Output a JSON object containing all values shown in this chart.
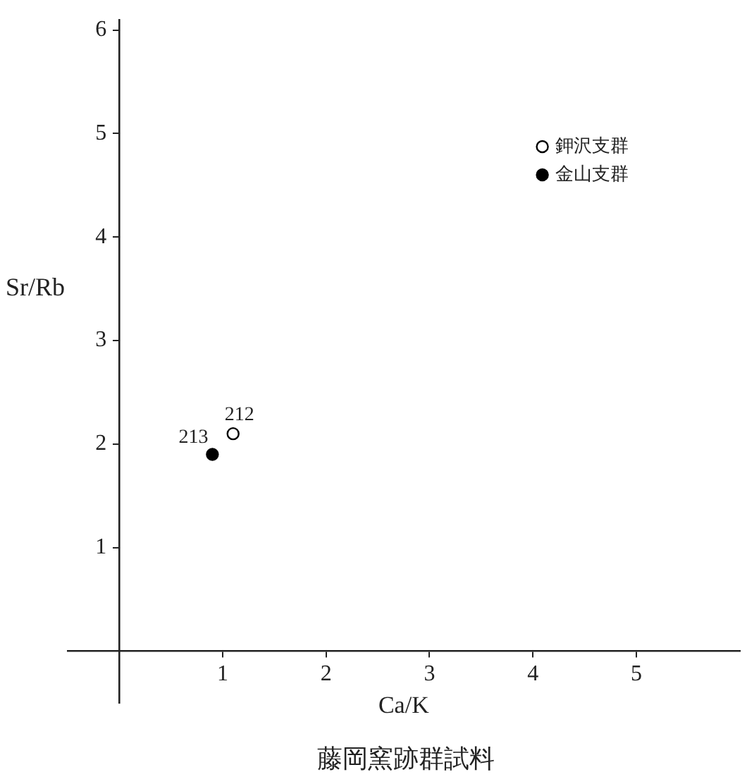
{
  "chart_data": {
    "type": "scatter",
    "title": "藤岡窯跡群試料",
    "xlabel": "Ca/K",
    "ylabel": "Sr/Rb",
    "series": [
      {
        "name": "鉀沢支群",
        "color": "#000000",
        "x": [
          1.1
        ],
        "values": [
          2.1
        ]
      },
      {
        "name": "金山支群",
        "color": "#000000",
        "x": [
          0.9
        ],
        "values": [
          1.9
        ]
      }
    ],
    "annotations": [
      {
        "text": "212",
        "x": 1.1,
        "y": 2.1
      },
      {
        "text": "213",
        "x": 0.9,
        "y": 1.9
      }
    ],
    "xlim": [
      -0.5,
      6
    ],
    "ylim": [
      -0.5,
      6.1
    ],
    "xticks": [
      1,
      2,
      3,
      4,
      5
    ],
    "yticks": [
      1,
      2,
      3,
      4,
      5,
      6
    ],
    "marker": "circle",
    "legend": "top right",
    "grid": false
  }
}
